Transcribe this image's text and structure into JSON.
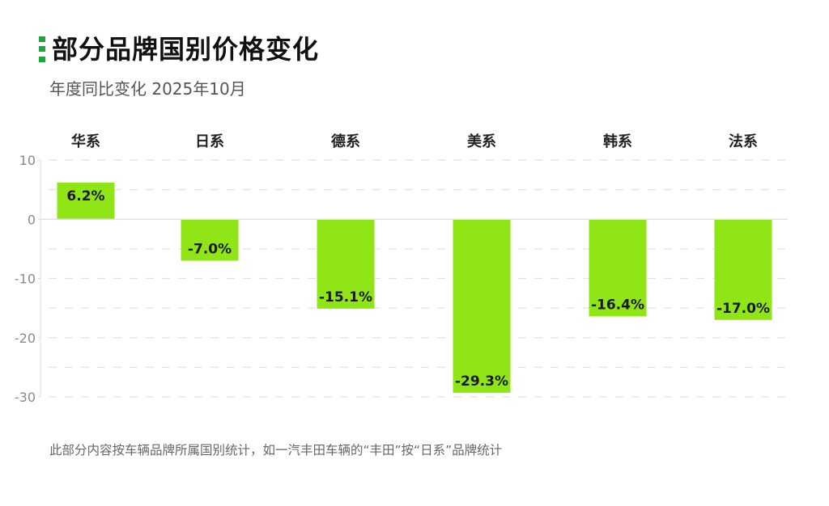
{
  "header": {
    "title": "部分品牌国别价格变化",
    "subtitle": "年度同比变化 2025年10月",
    "accent_color": "#1fa83a"
  },
  "footnote": "此部分内容按车辆品牌所属国别统计，如一汽丰田车辆的“丰田”按“日系”品牌统计",
  "chart_data": {
    "type": "bar",
    "title": "部分品牌国别价格变化",
    "subtitle": "年度同比变化 2025年10月",
    "categories": [
      "华系",
      "日系",
      "德系",
      "美系",
      "韩系",
      "法系"
    ],
    "values": [
      6.2,
      -7.0,
      -15.1,
      -29.3,
      -16.4,
      -17.0
    ],
    "data_labels": [
      "6.2%",
      "-7.0%",
      "-15.1%",
      "-29.3%",
      "-16.4%",
      "-17.0%"
    ],
    "ylim": [
      -30,
      10
    ],
    "yticks": [
      10,
      0,
      -10,
      -20,
      -30
    ],
    "category_axis_position": "top",
    "grid": true,
    "grid_style": "dashed, every 5",
    "bar_color": "#8fe516",
    "xlabel": "",
    "ylabel": ""
  }
}
